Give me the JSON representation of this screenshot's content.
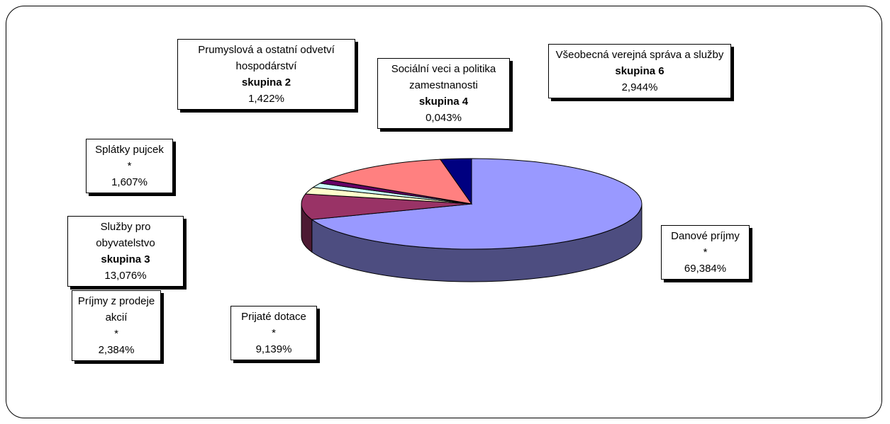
{
  "chart_data": {
    "type": "pie3d",
    "categories": [
      "Danové príjmy",
      "Prijaté dotace",
      "Príjmy z prodeje akcií",
      "Splátky pujcek",
      "Prumyslová a ostatní odvetví hospodárství",
      "Sociální veci a politika zamestnanosti",
      "Služby pro obyvatelstvo",
      "Všeobecná verejná správa a služby"
    ],
    "groups": [
      "*",
      "*",
      "*",
      "*",
      "skupina 2",
      "skupina 4",
      "skupina 3",
      "skupina 6"
    ],
    "values": [
      69.384,
      9.139,
      2.384,
      1.607,
      1.422,
      0.043,
      13.076,
      2.944
    ],
    "value_labels": [
      "69,384%",
      "9,139%",
      "2,384%",
      "1,607%",
      "1,422%",
      "0,043%",
      "13,076%",
      "2,944%"
    ],
    "colors": [
      "#9999ff",
      "#993366",
      "#ffffcc",
      "#ccffff",
      "#660066",
      "#0066cc",
      "#ff8080",
      "#000080"
    ]
  }
}
